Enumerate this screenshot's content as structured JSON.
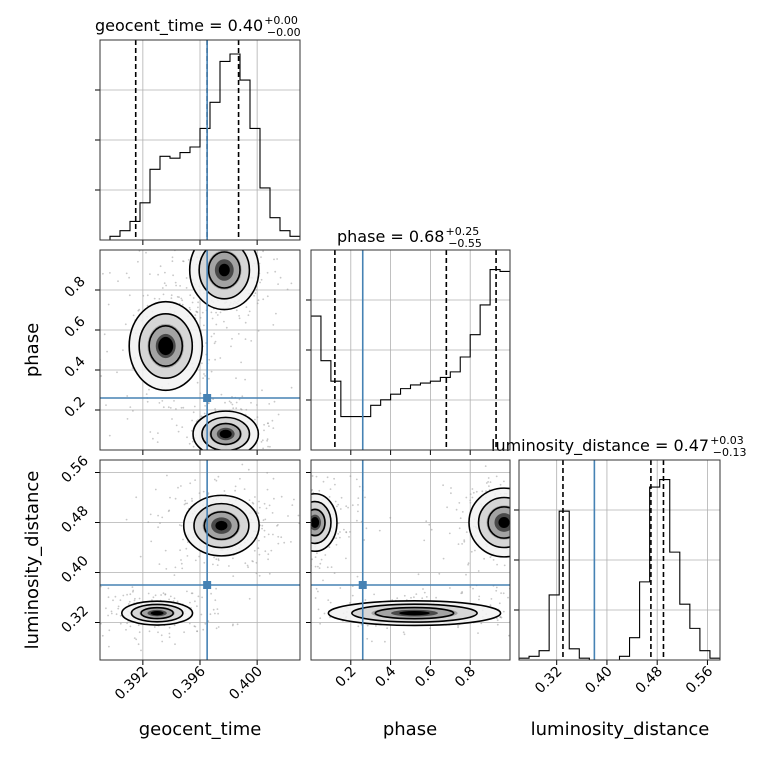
{
  "colors": {
    "truth": "#4682b4",
    "hist": "#000000",
    "grid": "#b0b0b0"
  },
  "params": [
    {
      "name": "geocent_time",
      "median": "0.40",
      "plus": "+0.00",
      "minus": "−0.00"
    },
    {
      "name": "phase",
      "median": "0.68",
      "plus": "+0.25",
      "minus": "−0.55"
    },
    {
      "name": "luminosity_distance",
      "median": "0.47",
      "plus": "+0.03",
      "minus": "−0.13"
    }
  ],
  "titles": {
    "geocent_time": "geocent_time = 0.40",
    "phase": "phase = 0.68",
    "luminosity_distance": "luminosity_distance = 0.47"
  },
  "axis_labels": {
    "x_bottom_0": "geocent_time",
    "x_bottom_1": "phase",
    "x_bottom_2": "luminosity_distance",
    "y_left_1": "phase",
    "y_left_2": "luminosity_distance"
  },
  "chart_data": {
    "type": "corner",
    "grid": true,
    "truths": {
      "geocent_time": 0.3965,
      "phase": 0.26,
      "luminosity_distance": 0.38
    },
    "ranges": {
      "geocent_time": [
        0.389,
        0.403
      ],
      "phase": [
        0.0,
        1.0
      ],
      "luminosity_distance": [
        0.26,
        0.58
      ]
    },
    "ticks": {
      "geocent_time": [
        "0.392",
        "0.396",
        "0.400"
      ],
      "phase": [
        "0.2",
        "0.4",
        "0.6",
        "0.8"
      ],
      "luminosity_distance": [
        "0.32",
        "0.40",
        "0.48",
        "0.56"
      ]
    },
    "tick_values": {
      "geocent_time": [
        0.392,
        0.396,
        0.4
      ],
      "phase": [
        0.2,
        0.4,
        0.6,
        0.8
      ],
      "luminosity_distance": [
        0.32,
        0.4,
        0.48,
        0.56
      ]
    },
    "quantiles": {
      "geocent_time": [
        0.3915,
        0.3965,
        0.3987
      ],
      "phase": [
        0.12,
        0.68,
        0.93
      ],
      "luminosity_distance": [
        0.33,
        0.47,
        0.49
      ]
    },
    "histograms": {
      "geocent_time": {
        "edges_start": 0.389,
        "bin_width": 0.0007,
        "counts": [
          0.0,
          0.02,
          0.05,
          0.1,
          0.2,
          0.38,
          0.45,
          0.44,
          0.47,
          0.5,
          0.6,
          0.74,
          0.96,
          1.0,
          0.86,
          0.6,
          0.28,
          0.12,
          0.05,
          0.02
        ]
      },
      "phase": {
        "edges_start": 0.0,
        "bin_width": 0.05,
        "counts": [
          0.72,
          0.48,
          0.37,
          0.18,
          0.18,
          0.18,
          0.24,
          0.27,
          0.3,
          0.33,
          0.35,
          0.36,
          0.37,
          0.39,
          0.42,
          0.5,
          0.62,
          0.78,
          0.97,
          0.96
        ]
      },
      "luminosity_distance": {
        "edges_start": 0.26,
        "bin_width": 0.016,
        "counts": [
          0.01,
          0.02,
          0.05,
          0.35,
          0.8,
          0.06,
          0.01,
          0.0,
          0.0,
          0.0,
          0.02,
          0.12,
          0.42,
          0.93,
          0.97,
          0.58,
          0.3,
          0.17,
          0.05,
          0.01
        ]
      }
    },
    "density_blobs": {
      "geocent_time_vs_phase": [
        {
          "x": 0.3977,
          "y": 0.9,
          "sx": 0.0011,
          "sy": 0.09,
          "w": 1.0
        },
        {
          "x": 0.3936,
          "y": 0.52,
          "sx": 0.0015,
          "sy": 0.13,
          "w": 0.6
        },
        {
          "x": 0.3978,
          "y": 0.08,
          "sx": 0.0012,
          "sy": 0.06,
          "w": 0.75
        }
      ],
      "geocent_time_vs_luminosity_distance": [
        {
          "x": 0.3975,
          "y": 0.475,
          "sx": 0.0012,
          "sy": 0.022,
          "w": 1.0
        },
        {
          "x": 0.393,
          "y": 0.335,
          "sx": 0.0013,
          "sy": 0.01,
          "w": 0.75
        }
      ],
      "phase_vs_luminosity_distance": [
        {
          "x": 0.97,
          "y": 0.48,
          "sx": 0.08,
          "sy": 0.025,
          "w": 1.0
        },
        {
          "x": 0.02,
          "y": 0.48,
          "sx": 0.06,
          "sy": 0.025,
          "w": 0.7
        },
        {
          "x": 0.52,
          "y": 0.335,
          "sx": 0.22,
          "sy": 0.01,
          "w": 0.8
        }
      ]
    }
  }
}
